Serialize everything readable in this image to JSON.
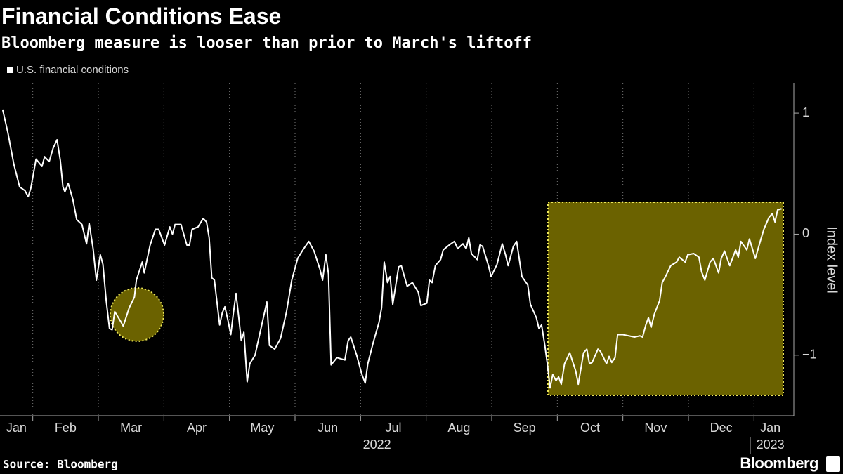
{
  "chart_data": {
    "type": "line",
    "title": "Financial Conditions Ease",
    "subtitle": "Bloomberg measure is looser than prior to March's liftoff",
    "y_label": "Index level",
    "source": "Source: Bloomberg",
    "logo": "Bloomberg",
    "x": [
      0.54,
      0.62,
      0.71,
      0.8,
      0.88,
      0.93,
      0.97,
      1.05,
      1.14,
      1.18,
      1.25,
      1.31,
      1.37,
      1.42,
      1.46,
      1.49,
      1.54,
      1.61,
      1.67,
      1.75,
      1.82,
      1.86,
      1.92,
      1.97,
      2.03,
      2.07,
      2.12,
      2.17,
      2.21,
      2.25,
      2.34,
      2.38,
      2.47,
      2.55,
      2.58,
      2.67,
      2.7,
      2.79,
      2.87,
      2.92,
      3.01,
      3.09,
      3.13,
      3.17,
      3.26,
      3.35,
      3.39,
      3.43,
      3.52,
      3.6,
      3.65,
      3.69,
      3.73,
      3.77,
      3.82,
      3.85,
      3.89,
      3.93,
      3.98,
      4.02,
      4.06,
      4.1,
      4.14,
      4.18,
      4.22,
      4.27,
      4.31,
      4.39,
      4.48,
      4.57,
      4.61,
      4.69,
      4.78,
      4.87,
      4.95,
      5.04,
      5.12,
      5.21,
      5.29,
      5.38,
      5.42,
      5.47,
      5.51,
      5.55,
      5.64,
      5.76,
      5.81,
      5.85,
      5.94,
      6.02,
      6.07,
      6.11,
      6.19,
      6.28,
      6.32,
      6.36,
      6.41,
      6.45,
      6.49,
      6.58,
      6.62,
      6.71,
      6.79,
      6.88,
      6.92,
      7.01,
      7.05,
      7.09,
      7.14,
      7.22,
      7.26,
      7.35,
      7.43,
      7.48,
      7.56,
      7.61,
      7.65,
      7.69,
      7.78,
      7.82,
      7.86,
      7.95,
      7.99,
      8.08,
      8.16,
      8.21,
      8.25,
      8.33,
      8.38,
      8.46,
      8.55,
      8.59,
      8.68,
      8.72,
      8.76,
      8.81,
      8.85,
      8.89,
      8.93,
      8.98,
      9.02,
      9.06,
      9.11,
      9.19,
      9.28,
      9.32,
      9.4,
      9.45,
      9.49,
      9.53,
      9.62,
      9.66,
      9.75,
      9.79,
      9.83,
      9.88,
      9.92,
      10.0,
      10.09,
      10.18,
      10.26,
      10.3,
      10.35,
      10.39,
      10.43,
      10.48,
      10.56,
      10.6,
      10.65,
      10.73,
      10.82,
      10.86,
      10.95,
      10.99,
      11.08,
      11.16,
      11.2,
      11.25,
      11.33,
      11.38,
      11.46,
      11.5,
      11.55,
      11.63,
      11.72,
      11.76,
      11.8,
      11.89,
      11.93,
      12.02,
      12.1,
      12.15,
      12.23,
      12.28,
      12.32,
      12.36,
      12.42
    ],
    "series": [
      {
        "name": "U.S. financial conditions",
        "color": "#ffffff",
        "values": [
          1.03,
          0.84,
          0.58,
          0.39,
          0.36,
          0.31,
          0.38,
          0.62,
          0.56,
          0.64,
          0.6,
          0.71,
          0.78,
          0.61,
          0.39,
          0.35,
          0.42,
          0.29,
          0.12,
          0.08,
          -0.08,
          0.09,
          -0.12,
          -0.38,
          -0.17,
          -0.25,
          -0.55,
          -0.78,
          -0.79,
          -0.64,
          -0.72,
          -0.76,
          -0.61,
          -0.52,
          -0.38,
          -0.23,
          -0.32,
          -0.09,
          0.04,
          0.04,
          -0.09,
          0.06,
          0.0,
          0.08,
          0.08,
          -0.09,
          -0.09,
          0.04,
          0.06,
          0.13,
          0.1,
          -0.03,
          -0.36,
          -0.38,
          -0.61,
          -0.75,
          -0.65,
          -0.6,
          -0.72,
          -0.83,
          -0.65,
          -0.49,
          -0.68,
          -0.88,
          -0.81,
          -1.22,
          -1.07,
          -1.0,
          -0.78,
          -0.56,
          -0.92,
          -0.95,
          -0.86,
          -0.64,
          -0.38,
          -0.2,
          -0.13,
          -0.06,
          -0.14,
          -0.29,
          -0.38,
          -0.17,
          -0.33,
          -1.08,
          -1.02,
          -1.04,
          -0.88,
          -0.85,
          -1.0,
          -1.16,
          -1.23,
          -1.07,
          -0.9,
          -0.73,
          -0.61,
          -0.23,
          -0.4,
          -0.35,
          -0.58,
          -0.27,
          -0.26,
          -0.43,
          -0.4,
          -0.48,
          -0.59,
          -0.57,
          -0.38,
          -0.4,
          -0.26,
          -0.21,
          -0.13,
          -0.09,
          -0.06,
          -0.12,
          -0.08,
          -0.12,
          -0.03,
          -0.16,
          -0.21,
          -0.09,
          -0.1,
          -0.26,
          -0.35,
          -0.25,
          -0.08,
          -0.17,
          -0.26,
          -0.1,
          -0.06,
          -0.35,
          -0.42,
          -0.58,
          -0.69,
          -0.78,
          -0.75,
          -0.92,
          -1.08,
          -1.27,
          -1.16,
          -1.21,
          -1.18,
          -1.24,
          -1.07,
          -0.98,
          -1.13,
          -1.24,
          -0.98,
          -0.95,
          -1.07,
          -1.06,
          -0.95,
          -0.97,
          -1.07,
          -1.01,
          -1.06,
          -1.02,
          -0.83,
          -0.83,
          -0.84,
          -0.85,
          -0.84,
          -0.85,
          -0.75,
          -0.69,
          -0.77,
          -0.66,
          -0.55,
          -0.4,
          -0.35,
          -0.26,
          -0.23,
          -0.19,
          -0.23,
          -0.17,
          -0.16,
          -0.19,
          -0.31,
          -0.38,
          -0.23,
          -0.2,
          -0.32,
          -0.2,
          -0.14,
          -0.26,
          -0.13,
          -0.19,
          -0.06,
          -0.13,
          -0.04,
          -0.2,
          -0.05,
          0.04,
          0.14,
          0.17,
          0.1,
          0.2,
          0.21
        ]
      }
    ],
    "xlim": [
      0.5,
      12.5
    ],
    "xticks": [
      {
        "value": 0.75,
        "label": "Jan"
      },
      {
        "value": 1.5,
        "label": "Feb"
      },
      {
        "value": 2.5,
        "label": "Mar"
      },
      {
        "value": 3.5,
        "label": "Apr"
      },
      {
        "value": 4.5,
        "label": "May"
      },
      {
        "value": 5.5,
        "label": "Jun"
      },
      {
        "value": 6.5,
        "label": "Jul"
      },
      {
        "value": 7.5,
        "label": "Aug"
      },
      {
        "value": 8.5,
        "label": "Sep"
      },
      {
        "value": 9.5,
        "label": "Oct"
      },
      {
        "value": 10.5,
        "label": "Nov"
      },
      {
        "value": 11.5,
        "label": "Dec"
      },
      {
        "value": 12.25,
        "label": "Jan"
      }
    ],
    "xgrid": [
      1,
      2,
      3,
      4,
      5,
      6,
      7,
      8,
      9,
      10,
      11,
      12
    ],
    "year_labels": [
      {
        "value": 6.25,
        "label": "2022"
      },
      {
        "value": 12.25,
        "label": "2023"
      }
    ],
    "ylim": [
      -1.5,
      1.25
    ],
    "yticks": [
      1,
      0,
      {
        "value": -1,
        "label": "−1"
      }
    ],
    "grid": true
  }
}
